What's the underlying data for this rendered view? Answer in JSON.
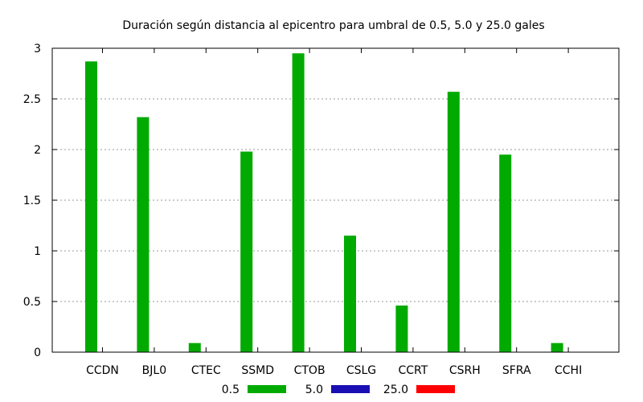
{
  "chart_data": {
    "type": "bar",
    "title": "Duración según distancia al epicentro para umbral de 0.5, 5.0 y 25.0 gales",
    "xlabel": "",
    "ylabel": "",
    "ylim": [
      0,
      3
    ],
    "yticks": [
      "0",
      "0.5",
      "1",
      "1.5",
      "2",
      "2.5",
      "3"
    ],
    "ytick_values": [
      0,
      0.5,
      1,
      1.5,
      2,
      2.5,
      3
    ],
    "grid": true,
    "legend_position": "bottom",
    "categories": [
      "CCDN",
      "BJL0",
      "CTEC",
      "SSMD",
      "CTOB",
      "CSLG",
      "CCRT",
      "CSRH",
      "SFRA",
      "CCHI"
    ],
    "series": [
      {
        "name": "0.5",
        "color": "#00aa00",
        "values": [
          2.87,
          2.32,
          0.09,
          1.98,
          2.95,
          1.15,
          0.46,
          2.57,
          1.95,
          0.09
        ]
      },
      {
        "name": "5.0",
        "color": "#1a0fb4",
        "values": [
          0,
          0,
          0,
          0,
          0,
          0,
          0,
          0,
          0,
          0
        ]
      },
      {
        "name": "25.0",
        "color": "#ff0000",
        "values": [
          0,
          0,
          0,
          0,
          0,
          0,
          0,
          0,
          0,
          0
        ]
      }
    ]
  }
}
